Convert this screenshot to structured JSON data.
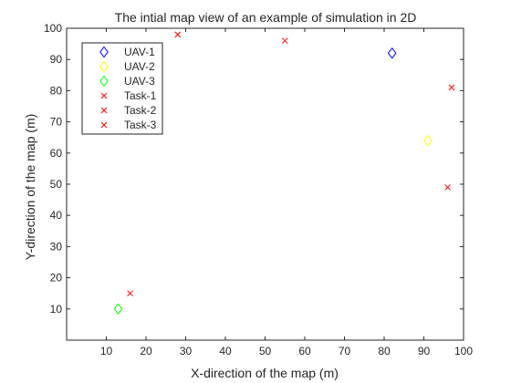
{
  "chart_data": {
    "type": "scatter",
    "title": "The intial map view of an example of simulation in 2D",
    "xlabel": "X-direction of the map (m)",
    "ylabel": "Y-direction of the map (m)",
    "xlim": [
      0,
      100
    ],
    "ylim": [
      0,
      100
    ],
    "xticks": [
      "10",
      "20",
      "30",
      "40",
      "50",
      "60",
      "70",
      "80",
      "90",
      "100"
    ],
    "yticks": [
      "10",
      "20",
      "30",
      "40",
      "50",
      "60",
      "70",
      "80",
      "90",
      "100"
    ],
    "grid": false,
    "legend_position": "top-left",
    "series": [
      {
        "name": "UAV-1",
        "marker": "diamond",
        "color": "#0000ff",
        "points": [
          [
            82,
            92
          ]
        ]
      },
      {
        "name": "UAV-2",
        "marker": "diamond",
        "color": "#ffff00",
        "points": [
          [
            91,
            64
          ]
        ]
      },
      {
        "name": "UAV-3",
        "marker": "diamond",
        "color": "#00ff00",
        "points": [
          [
            13,
            10
          ]
        ]
      },
      {
        "name": "Task-1",
        "marker": "x",
        "color": "#ff0000",
        "points": [
          [
            28,
            98
          ],
          [
            55,
            96
          ]
        ]
      },
      {
        "name": "Task-2",
        "marker": "x",
        "color": "#ff0000",
        "points": [
          [
            97,
            81
          ],
          [
            96,
            49
          ]
        ]
      },
      {
        "name": "Task-3",
        "marker": "x",
        "color": "#ff0000",
        "points": [
          [
            16,
            15
          ]
        ]
      }
    ]
  }
}
